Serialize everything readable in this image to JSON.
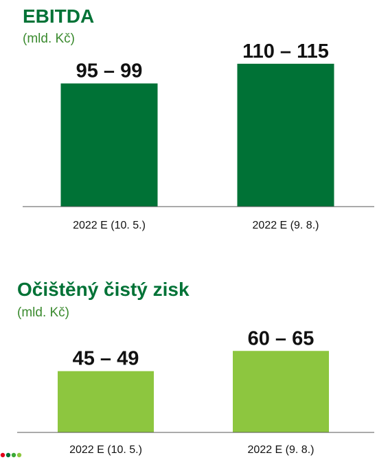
{
  "colors": {
    "title": "#007236",
    "subtitle": "#3a8a2e",
    "axis": "#555555",
    "dots": [
      "#e2001a",
      "#007236",
      "#3aa935",
      "#8dc63f"
    ]
  },
  "chart_data": [
    {
      "type": "bar",
      "title": "EBITDA",
      "subtitle": "(mld. Kč)",
      "categories": [
        "2022 E (10. 5.)",
        "2022 E (9. 8.)"
      ],
      "values": [
        97,
        112.5
      ],
      "value_labels": [
        "95 – 99",
        "110 – 115"
      ],
      "bar_color": "#007236",
      "ylim": [
        0,
        120
      ],
      "grid": false
    },
    {
      "type": "bar",
      "title": "Očištěný čistý zisk",
      "subtitle": "(mld. Kč)",
      "categories": [
        "2022 E (10. 5.)",
        "2022 E (9. 8.)"
      ],
      "values": [
        47,
        62.5
      ],
      "value_labels": [
        "45 – 49",
        "60 – 65"
      ],
      "bar_color": "#8dc63f",
      "ylim": [
        0,
        70
      ],
      "grid": false
    }
  ]
}
